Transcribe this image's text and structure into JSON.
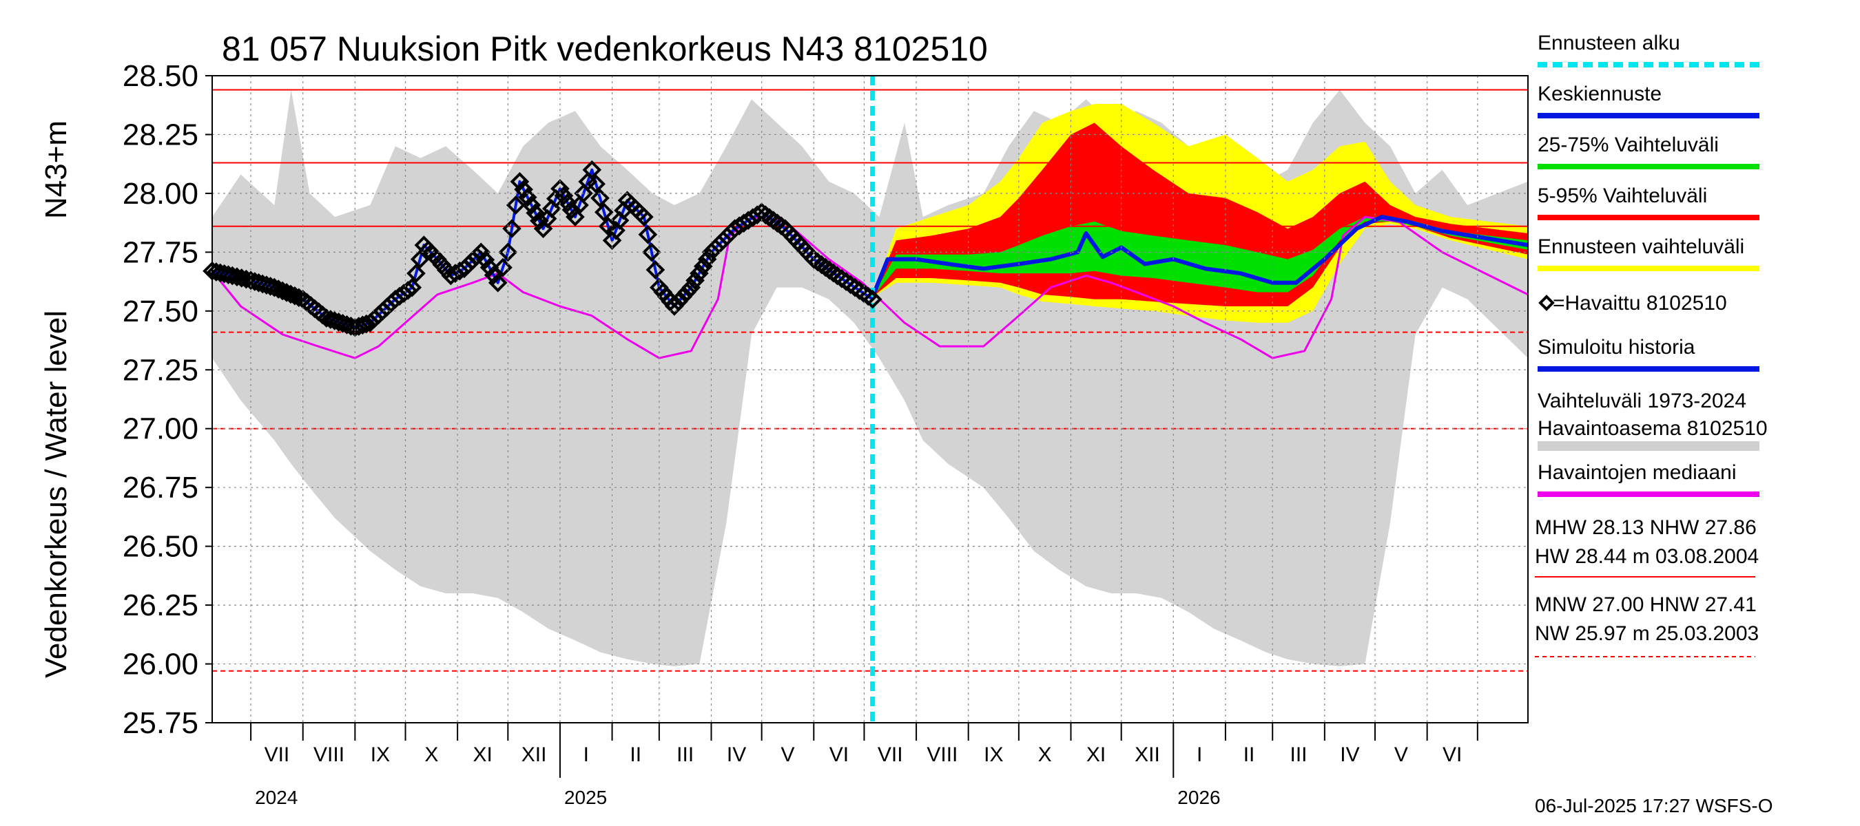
{
  "chart_data": {
    "type": "line",
    "title": "81 057 Nuuksion Pitk vedenkorkeus N43 8102510",
    "ylabel": "Vedenkorkeus / Water level",
    "yunit": "N43+m",
    "ylim": [
      25.75,
      28.5
    ],
    "yticks": [
      "28.50",
      "28.25",
      "28.00",
      "27.75",
      "27.50",
      "27.25",
      "27.00",
      "26.75",
      "26.50",
      "26.25",
      "26.00",
      "25.75"
    ],
    "x_range": [
      "2024-06-08",
      "2026-07-31"
    ],
    "forecast_start": "2025-07-06",
    "months": [
      {
        "label": "VII",
        "date": "2024-07-01"
      },
      {
        "label": "VIII",
        "date": "2024-08-01"
      },
      {
        "label": "IX",
        "date": "2024-09-01"
      },
      {
        "label": "X",
        "date": "2024-10-01"
      },
      {
        "label": "XI",
        "date": "2024-11-01"
      },
      {
        "label": "XII",
        "date": "2024-12-01"
      },
      {
        "label": "I",
        "date": "2025-01-01"
      },
      {
        "label": "II",
        "date": "2025-02-01"
      },
      {
        "label": "III",
        "date": "2025-03-01"
      },
      {
        "label": "IV",
        "date": "2025-04-01"
      },
      {
        "label": "V",
        "date": "2025-05-01"
      },
      {
        "label": "VI",
        "date": "2025-06-01"
      },
      {
        "label": "VII",
        "date": "2025-07-01"
      },
      {
        "label": "VIII",
        "date": "2025-08-01"
      },
      {
        "label": "IX",
        "date": "2025-09-01"
      },
      {
        "label": "X",
        "date": "2025-10-01"
      },
      {
        "label": "XI",
        "date": "2025-11-01"
      },
      {
        "label": "XII",
        "date": "2025-12-01"
      },
      {
        "label": "I",
        "date": "2026-01-01"
      },
      {
        "label": "II",
        "date": "2026-02-01"
      },
      {
        "label": "III",
        "date": "2026-03-01"
      },
      {
        "label": "IV",
        "date": "2026-04-01"
      },
      {
        "label": "V",
        "date": "2026-05-01"
      },
      {
        "label": "VI",
        "date": "2026-06-01"
      },
      {
        "label": "",
        "date": "2026-07-01"
      }
    ],
    "years": [
      {
        "label": "2024",
        "date": "2024-07-01"
      },
      {
        "label": "2025",
        "date": "2025-01-01"
      },
      {
        "label": "2026",
        "date": "2026-01-01"
      }
    ],
    "reference_lines": [
      {
        "name": "HW",
        "value": 28.44,
        "style": "solid"
      },
      {
        "name": "MHW",
        "value": 28.13,
        "style": "solid"
      },
      {
        "name": "NHW",
        "value": 27.86,
        "style": "solid"
      },
      {
        "name": "HNW",
        "value": 27.41,
        "style": "dashed"
      },
      {
        "name": "MNW",
        "value": 27.0,
        "style": "dashed"
      },
      {
        "name": "NW",
        "value": 25.97,
        "style": "dashed"
      }
    ],
    "history_band": {
      "x": [
        "2024-06-08",
        "2024-06-25",
        "2024-07-15",
        "2024-07-25",
        "2024-08-05",
        "2024-08-20",
        "2024-09-10",
        "2024-09-25",
        "2024-10-10",
        "2024-10-25",
        "2024-11-10",
        "2024-11-25",
        "2024-12-10",
        "2024-12-25",
        "2025-01-10",
        "2025-01-25",
        "2025-02-10",
        "2025-02-25",
        "2025-03-10",
        "2025-03-25",
        "2025-04-10",
        "2025-04-25",
        "2025-05-10",
        "2025-05-25",
        "2025-06-10",
        "2025-06-25",
        "2025-07-10",
        "2025-07-25",
        "2025-08-05",
        "2025-08-20",
        "2025-09-10",
        "2025-09-25",
        "2025-10-10",
        "2025-10-25",
        "2025-11-10",
        "2025-11-25",
        "2025-12-10",
        "2025-12-25",
        "2026-01-10",
        "2026-01-25",
        "2026-02-10",
        "2026-02-25",
        "2026-03-10",
        "2026-03-25",
        "2026-04-10",
        "2026-04-25",
        "2026-05-10",
        "2026-05-25",
        "2026-06-10",
        "2026-06-25",
        "2026-07-31"
      ],
      "low": [
        27.3,
        27.12,
        26.95,
        26.85,
        26.75,
        26.62,
        26.48,
        26.4,
        26.33,
        26.3,
        26.3,
        26.28,
        26.22,
        26.15,
        26.1,
        26.05,
        26.02,
        26.0,
        25.99,
        26.0,
        26.6,
        27.4,
        27.6,
        27.6,
        27.55,
        27.45,
        27.3,
        27.12,
        26.95,
        26.85,
        26.75,
        26.62,
        26.48,
        26.4,
        26.33,
        26.3,
        26.3,
        26.28,
        26.22,
        26.15,
        26.1,
        26.05,
        26.02,
        26.0,
        25.99,
        26.0,
        26.6,
        27.4,
        27.6,
        27.55,
        27.3
      ],
      "high": [
        27.9,
        28.08,
        27.95,
        28.44,
        28.0,
        27.9,
        27.95,
        28.2,
        28.15,
        28.2,
        28.1,
        28.0,
        28.2,
        28.3,
        28.35,
        28.2,
        28.1,
        28.0,
        27.95,
        28.0,
        28.2,
        28.4,
        28.3,
        28.2,
        28.05,
        28.0,
        27.9,
        28.3,
        27.9,
        27.95,
        28.0,
        28.2,
        28.35,
        28.3,
        28.4,
        28.3,
        28.35,
        28.3,
        28.2,
        28.0,
        28.0,
        28.05,
        28.1,
        28.3,
        28.44,
        28.3,
        28.2,
        28.0,
        28.1,
        27.95,
        28.05
      ]
    },
    "series": [
      {
        "name": "Havaittu 8102510",
        "x": [
          "2024-06-08",
          "2024-06-20",
          "2024-07-01",
          "2024-07-15",
          "2024-08-01",
          "2024-08-15",
          "2024-09-01",
          "2024-09-10",
          "2024-09-25",
          "2024-10-05",
          "2024-10-12",
          "2024-10-20",
          "2024-10-28",
          "2024-11-05",
          "2024-11-15",
          "2024-11-25",
          "2024-12-01",
          "2024-12-08",
          "2024-12-15",
          "2024-12-22",
          "2025-01-01",
          "2025-01-10",
          "2025-01-20",
          "2025-02-01",
          "2025-02-10",
          "2025-02-20",
          "2025-03-01",
          "2025-03-10",
          "2025-03-20",
          "2025-04-01",
          "2025-04-15",
          "2025-05-01",
          "2025-05-15",
          "2025-06-01",
          "2025-06-15",
          "2025-07-06"
        ],
        "y": [
          27.67,
          27.65,
          27.63,
          27.6,
          27.55,
          27.47,
          27.43,
          27.45,
          27.55,
          27.6,
          27.78,
          27.72,
          27.65,
          27.68,
          27.75,
          27.62,
          27.75,
          28.05,
          27.95,
          27.85,
          28.02,
          27.9,
          28.1,
          27.8,
          27.97,
          27.9,
          27.6,
          27.52,
          27.6,
          27.75,
          27.85,
          27.92,
          27.85,
          27.72,
          27.65,
          27.55
        ]
      },
      {
        "name": "Havaintojen mediaani",
        "x": [
          "2024-06-08",
          "2024-06-25",
          "2024-07-20",
          "2024-08-10",
          "2024-09-01",
          "2024-09-15",
          "2024-10-01",
          "2024-10-20",
          "2024-11-10",
          "2024-11-25",
          "2024-12-10",
          "2025-01-01",
          "2025-01-20",
          "2025-02-10",
          "2025-03-01",
          "2025-03-20",
          "2025-04-05",
          "2025-04-12",
          "2025-04-25",
          "2025-05-15",
          "2025-06-10",
          "2025-06-30",
          "2025-07-25",
          "2025-08-15",
          "2025-09-10",
          "2025-10-01",
          "2025-10-20",
          "2025-11-10",
          "2025-11-25",
          "2025-12-10",
          "2026-01-01",
          "2026-01-20",
          "2026-02-10",
          "2026-03-01",
          "2026-03-20",
          "2026-04-05",
          "2026-04-12",
          "2026-04-25",
          "2026-05-15",
          "2026-06-10",
          "2026-07-31"
        ],
        "y": [
          27.67,
          27.52,
          27.4,
          27.35,
          27.3,
          27.35,
          27.45,
          27.57,
          27.62,
          27.66,
          27.58,
          27.52,
          27.48,
          27.38,
          27.3,
          27.33,
          27.55,
          27.82,
          27.9,
          27.88,
          27.72,
          27.62,
          27.45,
          27.35,
          27.35,
          27.48,
          27.6,
          27.65,
          27.62,
          27.58,
          27.52,
          27.45,
          27.38,
          27.3,
          27.33,
          27.55,
          27.82,
          27.9,
          27.88,
          27.75,
          27.57
        ]
      },
      {
        "name": "Keskiennuste",
        "x": [
          "2025-07-06",
          "2025-07-15",
          "2025-08-01",
          "2025-08-20",
          "2025-09-10",
          "2025-10-01",
          "2025-10-20",
          "2025-11-05",
          "2025-11-10",
          "2025-11-20",
          "2025-12-01",
          "2025-12-15",
          "2026-01-01",
          "2026-01-20",
          "2026-02-10",
          "2026-03-01",
          "2026-03-15",
          "2026-04-01",
          "2026-04-20",
          "2026-05-05",
          "2026-05-20",
          "2026-06-10",
          "2026-07-31"
        ],
        "y": [
          27.56,
          27.72,
          27.72,
          27.7,
          27.68,
          27.7,
          27.72,
          27.75,
          27.83,
          27.73,
          27.77,
          27.7,
          27.72,
          27.68,
          27.66,
          27.62,
          27.62,
          27.72,
          27.85,
          27.9,
          27.88,
          27.84,
          27.78
        ]
      }
    ],
    "forecast_bands": {
      "x": [
        "2025-07-06",
        "2025-07-20",
        "2025-08-10",
        "2025-09-01",
        "2025-09-20",
        "2025-10-01",
        "2025-10-15",
        "2025-11-01",
        "2025-11-15",
        "2025-12-01",
        "2025-12-20",
        "2026-01-10",
        "2026-02-01",
        "2026-02-20",
        "2026-03-10",
        "2026-03-25",
        "2026-04-10",
        "2026-04-25",
        "2026-05-10",
        "2026-05-25",
        "2026-06-15",
        "2026-07-31"
      ],
      "p0": [
        27.56,
        27.62,
        27.62,
        27.61,
        27.6,
        27.57,
        27.54,
        27.53,
        27.52,
        27.51,
        27.5,
        27.48,
        27.46,
        27.45,
        27.45,
        27.5,
        27.7,
        27.85,
        27.87,
        27.85,
        27.8,
        27.72
      ],
      "p5": [
        27.56,
        27.64,
        27.64,
        27.63,
        27.62,
        27.6,
        27.57,
        27.56,
        27.55,
        27.55,
        27.54,
        27.53,
        27.52,
        27.52,
        27.52,
        27.6,
        27.77,
        27.87,
        27.88,
        27.86,
        27.81,
        27.74
      ],
      "p25": [
        27.56,
        27.68,
        27.68,
        27.67,
        27.66,
        27.66,
        27.66,
        27.66,
        27.67,
        27.65,
        27.64,
        27.62,
        27.6,
        27.58,
        27.58,
        27.65,
        27.8,
        27.88,
        27.88,
        27.86,
        27.82,
        27.76
      ],
      "p75": [
        27.56,
        27.74,
        27.74,
        27.74,
        27.75,
        27.78,
        27.82,
        27.86,
        27.88,
        27.84,
        27.82,
        27.8,
        27.78,
        27.75,
        27.72,
        27.76,
        27.85,
        27.9,
        27.9,
        27.88,
        27.84,
        27.8
      ],
      "p95": [
        27.56,
        27.8,
        27.82,
        27.85,
        27.9,
        27.98,
        28.1,
        28.25,
        28.3,
        28.2,
        28.1,
        28.0,
        27.98,
        27.92,
        27.85,
        27.9,
        28.0,
        28.05,
        27.95,
        27.9,
        27.87,
        27.83
      ],
      "p100": [
        27.56,
        27.85,
        27.9,
        27.95,
        28.05,
        28.15,
        28.3,
        28.35,
        28.38,
        28.38,
        28.3,
        28.2,
        28.25,
        28.15,
        28.05,
        28.1,
        28.2,
        28.22,
        28.05,
        27.95,
        27.9,
        27.86
      ]
    },
    "legend": [
      {
        "label": "Ennusteen alku",
        "color": "#00e5ee",
        "style": "dashed"
      },
      {
        "label": "Keskiennuste",
        "color": "#0018e0",
        "style": "solid"
      },
      {
        "label": "25-75% Vaihteluväli",
        "color": "#00e000",
        "style": "solid"
      },
      {
        "label": "5-95% Vaihteluväli",
        "color": "#ff0000",
        "style": "solid"
      },
      {
        "label": "Ennusteen vaihteluväli",
        "color": "#ffff00",
        "style": "solid"
      },
      {
        "label": "=Havaittu 8102510",
        "color": "#000000",
        "style": "marker"
      },
      {
        "label": "Simuloitu historia",
        "color": "#0018e0",
        "style": "solid"
      },
      {
        "label": "Vaihteluväli 1973-2024",
        "label2": " Havaintoasema 8102510",
        "color": "#d0d0d0",
        "style": "band"
      },
      {
        "label": "Havaintojen mediaani",
        "color": "#ee00ee",
        "style": "solid"
      }
    ],
    "stats": {
      "line1": "MHW  28.13 NHW  27.86",
      "line2": "HW  28.44 m 03.08.2004",
      "line3": "MNW  27.00 HNW  27.41",
      "line4": "NW  25.97 m 25.03.2003"
    },
    "footer": "06-Jul-2025 17:27 WSFS-O",
    "colors": {
      "history_band": "#d3d3d3",
      "yellow": "#ffff00",
      "red": "#ff0000",
      "green": "#00e000",
      "blue": "#0018e0",
      "magenta": "#ee00ee",
      "cyan": "#00e5ee",
      "grid": "#888888"
    }
  }
}
